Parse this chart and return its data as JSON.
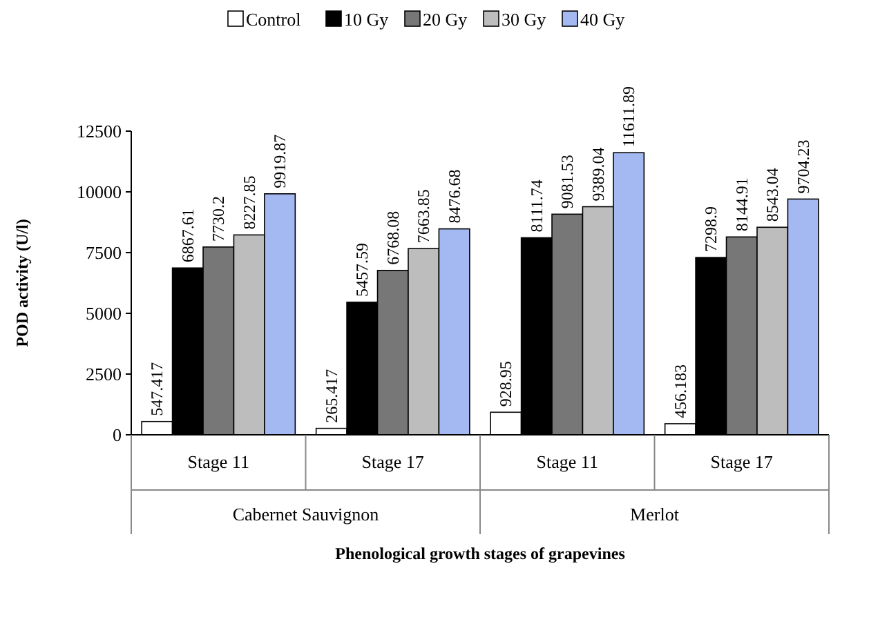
{
  "chart_data": {
    "type": "bar",
    "xlabel": "Phenological growth stages of grapevines",
    "ylabel": "POD activity (U/l)",
    "categories": [
      "Stage 11",
      "Stage 17",
      "Stage 11",
      "Stage 17"
    ],
    "annotations": [
      "Cabernet Sauvignon",
      "Merlot"
    ],
    "series": [
      {
        "name": "Control",
        "color": "#ffffff",
        "values": [
          547.417,
          265.417,
          928.95,
          456.183
        ]
      },
      {
        "name": "10 Gy",
        "color": "#000000",
        "values": [
          6867.61,
          5457.59,
          8111.74,
          7298.9
        ]
      },
      {
        "name": "20 Gy",
        "color": "#777777",
        "values": [
          7730.2,
          6768.08,
          9081.53,
          8144.91
        ]
      },
      {
        "name": "30 Gy",
        "color": "#bdbdbd",
        "values": [
          8227.85,
          7663.85,
          9389.04,
          8543.04
        ]
      },
      {
        "name": "40 Gy",
        "color": "#a4b8f2",
        "values": [
          9919.87,
          8476.68,
          11611.89,
          9704.23
        ]
      }
    ],
    "ylim": [
      0,
      12500
    ],
    "yticks": [
      0,
      2500,
      5000,
      7500,
      10000,
      12500
    ],
    "grid": false,
    "legend": "top",
    "data_labels": true
  }
}
